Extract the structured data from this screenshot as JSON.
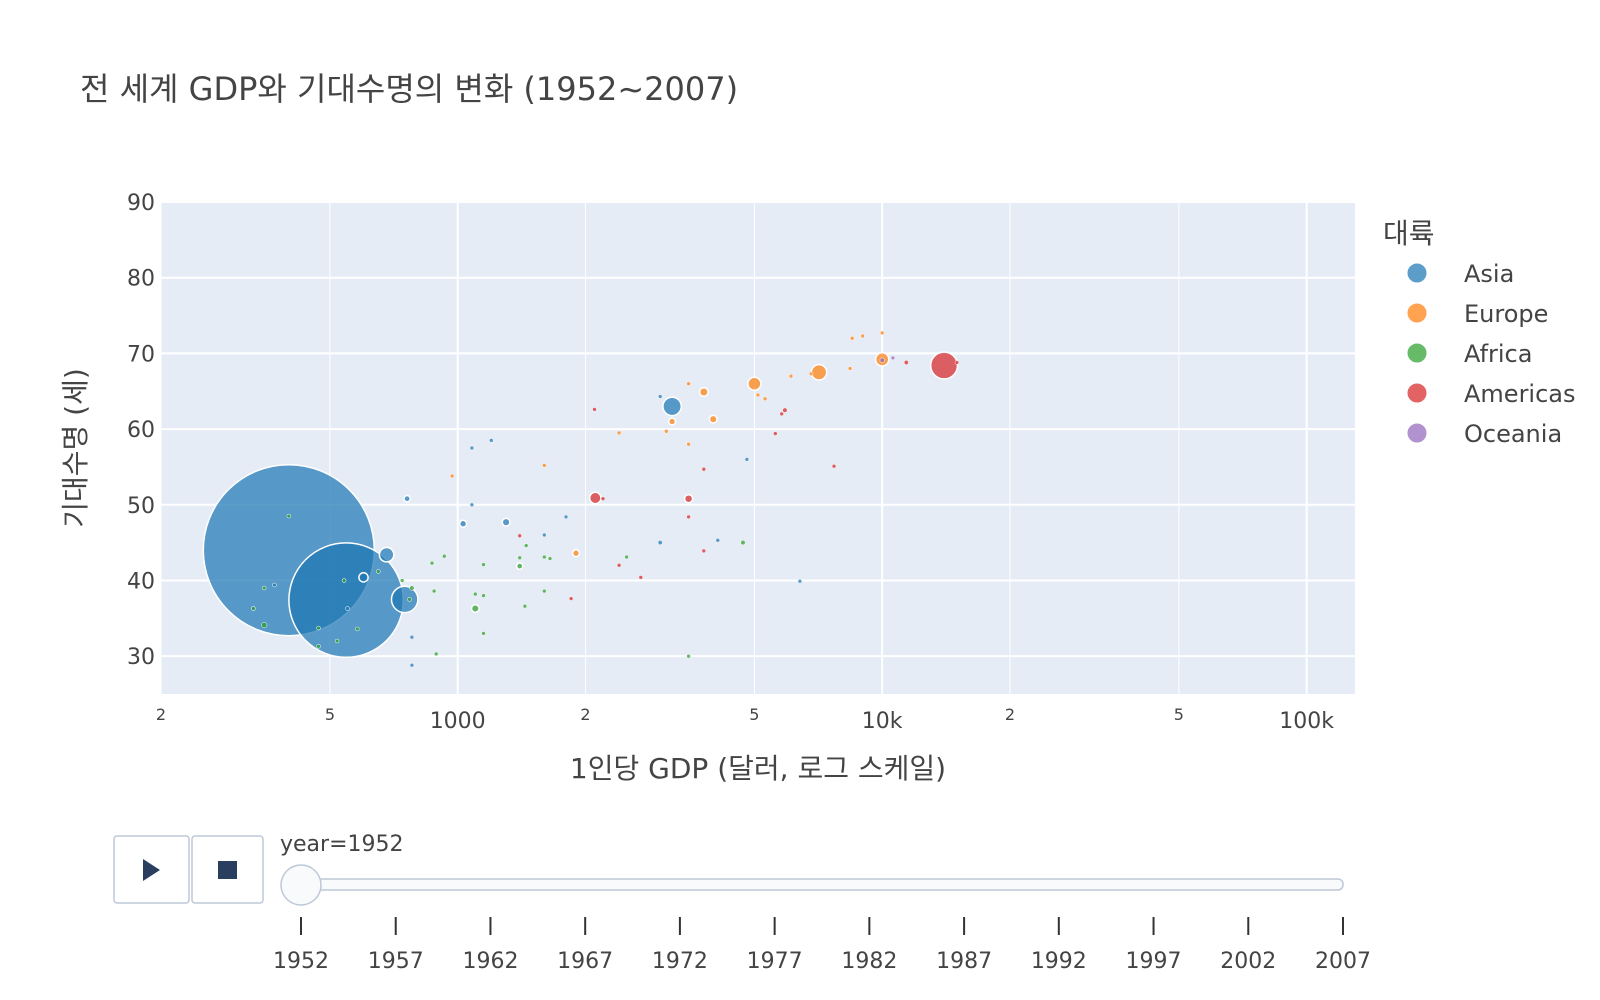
{
  "chart_data": {
    "type": "scatter",
    "title": "전 세계 GDP와 기대수명의 변화 (1952~2007)",
    "xlabel": "1인당 GDP (달러, 로그 스케일)",
    "ylabel": "기대수명 (세)",
    "x_scale": "log",
    "xlim": [
      200,
      130000
    ],
    "ylim": [
      25,
      90
    ],
    "grid": true,
    "x_ticks_major": [
      {
        "value": 1000,
        "label": "1000"
      },
      {
        "value": 10000,
        "label": "10k"
      },
      {
        "value": 100000,
        "label": "100k"
      }
    ],
    "x_ticks_minor": [
      {
        "value": 200,
        "label": "2"
      },
      {
        "value": 500,
        "label": "5"
      },
      {
        "value": 2000,
        "label": "2"
      },
      {
        "value": 5000,
        "label": "5"
      },
      {
        "value": 20000,
        "label": "2"
      },
      {
        "value": 50000,
        "label": "5"
      }
    ],
    "y_ticks": [
      30,
      40,
      50,
      60,
      70,
      80,
      90
    ],
    "legend": {
      "title": "대륙",
      "placement": "right"
    },
    "series": [
      {
        "name": "Asia",
        "color": "#1f77b4",
        "points": [
          {
            "x": 400,
            "y": 44.0,
            "size": 556
          },
          {
            "x": 546,
            "y": 37.4,
            "size": 372
          },
          {
            "x": 750,
            "y": 37.5,
            "size": 86
          },
          {
            "x": 680,
            "y": 43.4,
            "size": 47
          },
          {
            "x": 3200,
            "y": 63.0,
            "size": 60
          },
          {
            "x": 600,
            "y": 40.4,
            "size": 30
          },
          {
            "x": 1300,
            "y": 47.7,
            "size": 25
          },
          {
            "x": 1030,
            "y": 47.5,
            "size": 22
          },
          {
            "x": 760,
            "y": 50.8,
            "size": 20
          },
          {
            "x": 330,
            "y": 36.3,
            "size": 12
          },
          {
            "x": 3000,
            "y": 45.0,
            "size": 14
          },
          {
            "x": 1080,
            "y": 57.5,
            "size": 8
          },
          {
            "x": 1200,
            "y": 58.5,
            "size": 8
          },
          {
            "x": 1080,
            "y": 50.0,
            "size": 8
          },
          {
            "x": 780,
            "y": 28.8,
            "size": 9
          },
          {
            "x": 1800,
            "y": 48.4,
            "size": 6
          },
          {
            "x": 6400,
            "y": 39.9,
            "size": 5
          },
          {
            "x": 4100,
            "y": 45.3,
            "size": 6
          },
          {
            "x": 1600,
            "y": 46.0,
            "size": 5
          },
          {
            "x": 780,
            "y": 32.5,
            "size": 5
          },
          {
            "x": 550,
            "y": 36.3,
            "size": 8
          },
          {
            "x": 3000,
            "y": 64.3,
            "size": 5
          },
          {
            "x": 370,
            "y": 39.4,
            "size": 4
          },
          {
            "x": 4800,
            "y": 56.0,
            "size": 3
          }
        ]
      },
      {
        "name": "Europe",
        "color": "#ff7f0e",
        "points": [
          {
            "x": 7100,
            "y": 67.5,
            "size": 50
          },
          {
            "x": 10000,
            "y": 69.2,
            "size": 43
          },
          {
            "x": 5000,
            "y": 66.0,
            "size": 42
          },
          {
            "x": 3800,
            "y": 64.9,
            "size": 28
          },
          {
            "x": 4000,
            "y": 61.3,
            "size": 25
          },
          {
            "x": 1900,
            "y": 43.6,
            "size": 22
          },
          {
            "x": 3200,
            "y": 61.0,
            "size": 22
          },
          {
            "x": 8500,
            "y": 72.0,
            "size": 12
          },
          {
            "x": 9000,
            "y": 72.3,
            "size": 12
          },
          {
            "x": 5300,
            "y": 64.0,
            "size": 13
          },
          {
            "x": 8400,
            "y": 68.0,
            "size": 12
          },
          {
            "x": 3500,
            "y": 66.0,
            "size": 12
          },
          {
            "x": 2400,
            "y": 59.5,
            "size": 10
          },
          {
            "x": 3500,
            "y": 58.0,
            "size": 10
          },
          {
            "x": 3100,
            "y": 59.7,
            "size": 9
          },
          {
            "x": 6100,
            "y": 67.0,
            "size": 9
          },
          {
            "x": 6800,
            "y": 67.3,
            "size": 8
          },
          {
            "x": 5100,
            "y": 64.5,
            "size": 7
          },
          {
            "x": 970,
            "y": 53.8,
            "size": 6
          },
          {
            "x": 10000,
            "y": 72.7,
            "size": 6
          },
          {
            "x": 1600,
            "y": 55.2,
            "size": 3
          }
        ]
      },
      {
        "name": "Africa",
        "color": "#2ca02c",
        "points": [
          {
            "x": 1100,
            "y": 36.3,
            "size": 25
          },
          {
            "x": 1400,
            "y": 41.9,
            "size": 20
          },
          {
            "x": 4700,
            "y": 45.0,
            "size": 15
          },
          {
            "x": 350,
            "y": 34.1,
            "size": 18
          },
          {
            "x": 780,
            "y": 39.0,
            "size": 15
          },
          {
            "x": 2500,
            "y": 43.1,
            "size": 11
          },
          {
            "x": 1650,
            "y": 42.9,
            "size": 11
          },
          {
            "x": 1600,
            "y": 38.6,
            "size": 10
          },
          {
            "x": 650,
            "y": 41.2,
            "size": 10
          },
          {
            "x": 470,
            "y": 31.3,
            "size": 9
          },
          {
            "x": 930,
            "y": 43.2,
            "size": 8
          },
          {
            "x": 870,
            "y": 42.3,
            "size": 8
          },
          {
            "x": 740,
            "y": 40.0,
            "size": 9
          },
          {
            "x": 520,
            "y": 32.0,
            "size": 7
          },
          {
            "x": 400,
            "y": 48.5,
            "size": 9
          },
          {
            "x": 3500,
            "y": 30.0,
            "size": 7
          },
          {
            "x": 1400,
            "y": 43.0,
            "size": 6
          },
          {
            "x": 1450,
            "y": 44.6,
            "size": 6
          },
          {
            "x": 1150,
            "y": 42.1,
            "size": 5
          },
          {
            "x": 1150,
            "y": 33.0,
            "size": 5
          },
          {
            "x": 1440,
            "y": 36.6,
            "size": 6
          },
          {
            "x": 1150,
            "y": 38.0,
            "size": 6
          },
          {
            "x": 580,
            "y": 33.6,
            "size": 6
          },
          {
            "x": 770,
            "y": 37.5,
            "size": 6
          },
          {
            "x": 470,
            "y": 33.7,
            "size": 5
          },
          {
            "x": 330,
            "y": 36.3,
            "size": 4
          },
          {
            "x": 1100,
            "y": 38.2,
            "size": 4
          },
          {
            "x": 890,
            "y": 30.3,
            "size": 4
          },
          {
            "x": 350,
            "y": 39.0,
            "size": 5
          },
          {
            "x": 540,
            "y": 40.0,
            "size": 6
          },
          {
            "x": 880,
            "y": 38.6,
            "size": 3
          },
          {
            "x": 1600,
            "y": 43.1,
            "size": 3
          }
        ]
      },
      {
        "name": "Americas",
        "color": "#d62728",
        "points": [
          {
            "x": 13990,
            "y": 68.4,
            "size": 87
          },
          {
            "x": 2110,
            "y": 50.9,
            "size": 37
          },
          {
            "x": 3500,
            "y": 50.8,
            "size": 26
          },
          {
            "x": 11400,
            "y": 68.8,
            "size": 14
          },
          {
            "x": 5900,
            "y": 62.5,
            "size": 15
          },
          {
            "x": 3800,
            "y": 54.7,
            "size": 9
          },
          {
            "x": 7700,
            "y": 55.1,
            "size": 9
          },
          {
            "x": 3800,
            "y": 43.9,
            "size": 9
          },
          {
            "x": 5600,
            "y": 59.4,
            "size": 8
          },
          {
            "x": 3500,
            "y": 48.4,
            "size": 5
          },
          {
            "x": 1850,
            "y": 37.6,
            "size": 5
          },
          {
            "x": 2400,
            "y": 42.0,
            "size": 5
          },
          {
            "x": 2700,
            "y": 40.4,
            "size": 5
          },
          {
            "x": 1400,
            "y": 45.9,
            "size": 4
          },
          {
            "x": 15000,
            "y": 68.8,
            "size": 5
          },
          {
            "x": 2200,
            "y": 50.8,
            "size": 8
          },
          {
            "x": 2100,
            "y": 62.6,
            "size": 3
          },
          {
            "x": 5800,
            "y": 62.0,
            "size": 3
          }
        ]
      },
      {
        "name": "Oceania",
        "color": "#9467bd",
        "points": [
          {
            "x": 10000,
            "y": 69.1,
            "size": 15
          },
          {
            "x": 10600,
            "y": 69.4,
            "size": 6
          }
        ]
      }
    ],
    "slider": {
      "label": "year=1952",
      "current": 1952,
      "steps": [
        "1952",
        "1957",
        "1962",
        "1967",
        "1972",
        "1977",
        "1982",
        "1987",
        "1992",
        "1997",
        "2002",
        "2007"
      ]
    }
  }
}
